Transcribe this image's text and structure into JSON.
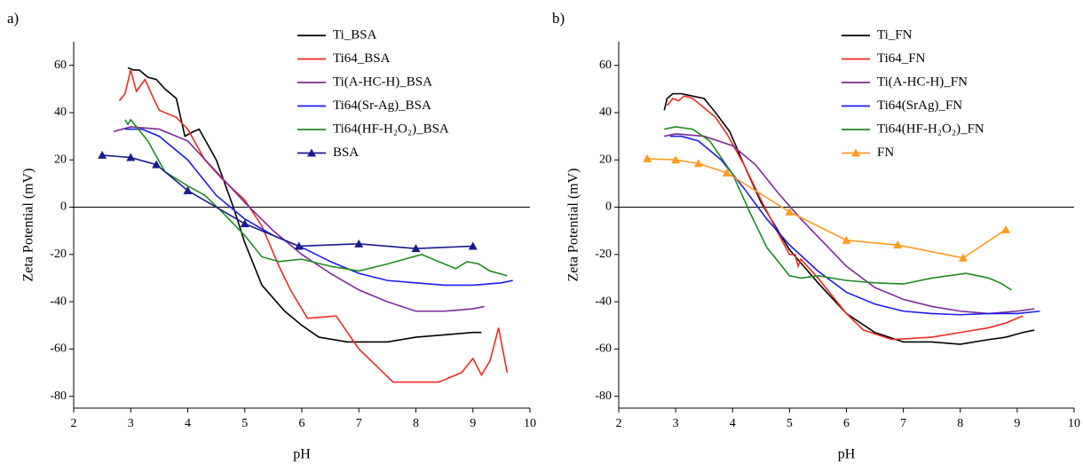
{
  "chart_data": [
    {
      "type": "line",
      "panel_label": "a)",
      "xlabel": "pH",
      "ylabel": "Zeta Potential (mV)",
      "xlim": [
        2,
        10
      ],
      "ylim": [
        -85,
        70
      ],
      "xticks": [
        2,
        3,
        4,
        5,
        6,
        7,
        8,
        9,
        10
      ],
      "yticks": [
        -80,
        -60,
        -40,
        -20,
        0,
        20,
        40,
        60
      ],
      "zero_line": true,
      "legend": "top-right",
      "series": [
        {
          "name": "Ti_BSA",
          "color": "#000000",
          "x": [
            2.95,
            3.05,
            3.15,
            3.3,
            3.45,
            3.6,
            3.8,
            3.95,
            4.1,
            4.2,
            4.5,
            4.8,
            5.0,
            5.3,
            5.7,
            6.0,
            6.3,
            6.8,
            7.5,
            8.0,
            8.5,
            9.0,
            9.15
          ],
          "values": [
            59,
            58,
            58,
            55,
            54,
            50,
            46,
            30,
            32,
            33,
            20,
            0,
            -15,
            -33,
            -44,
            -50,
            -55,
            -57,
            -57,
            -55,
            -54,
            -53,
            -53
          ]
        },
        {
          "name": "Ti64_BSA",
          "color": "#ee2a24",
          "x": [
            2.8,
            2.9,
            3.0,
            3.1,
            3.25,
            3.4,
            3.5,
            3.6,
            3.8,
            4.0,
            4.3,
            4.6,
            5.0,
            5.3,
            5.6,
            5.8,
            6.1,
            6.6,
            7.0,
            7.6,
            8.4,
            8.8,
            9.0,
            9.15,
            9.3,
            9.45,
            9.6
          ],
          "values": [
            45,
            48,
            58,
            49,
            54,
            46,
            41,
            40,
            38,
            33,
            20,
            12,
            3,
            -8,
            -25,
            -35,
            -47,
            -46,
            -60,
            -74,
            -74,
            -70,
            -64,
            -71,
            -65,
            -51,
            -70
          ]
        },
        {
          "name": "Ti(A-HC-H)_BSA",
          "color": "#7b2a96",
          "x": [
            2.7,
            3.0,
            3.5,
            4.0,
            4.5,
            5.0,
            5.5,
            6.0,
            6.5,
            7.0,
            7.5,
            8.0,
            8.5,
            9.0,
            9.2
          ],
          "values": [
            32,
            34,
            33,
            28,
            15,
            2,
            -10,
            -20,
            -28,
            -35,
            -40,
            -44,
            -44,
            -43,
            -42
          ]
        },
        {
          "name": "Ti64(Sr-Ag)_BSA",
          "color": "#1c1cf0",
          "x": [
            2.9,
            3.2,
            3.5,
            4.0,
            4.5,
            5.0,
            5.5,
            6.0,
            6.5,
            7.0,
            7.5,
            8.0,
            8.5,
            9.0,
            9.5,
            9.7
          ],
          "values": [
            33,
            33,
            30,
            20,
            5,
            -5,
            -12,
            -17,
            -23,
            -28,
            -31,
            -32,
            -33,
            -33,
            -32,
            -31
          ]
        },
        {
          "name": "Ti64(HF-H₂O₂)_BSA",
          "color": "#1f8a1f",
          "x": [
            2.9,
            2.95,
            3.0,
            3.1,
            3.3,
            3.6,
            4.0,
            4.3,
            4.6,
            5.0,
            5.3,
            5.6,
            6.0,
            6.5,
            7.0,
            7.5,
            8.1,
            8.5,
            8.7,
            8.9,
            9.1,
            9.3,
            9.6
          ],
          "values": [
            37,
            35,
            37,
            34,
            28,
            15,
            9,
            5,
            -2,
            -12,
            -21,
            -23,
            -22,
            -25,
            -27,
            -24,
            -20,
            -24,
            -26,
            -23,
            -24,
            -27,
            -29
          ]
        },
        {
          "name": "BSA",
          "color": "#1a1a8c",
          "marker": "triangle",
          "x": [
            2.5,
            3.0,
            3.45,
            4.0,
            5.0,
            5.95,
            7.0,
            8.0,
            9.0
          ],
          "values": [
            22,
            21,
            18,
            7,
            -7,
            -16.5,
            -15.5,
            -17.5,
            -16.5
          ]
        }
      ]
    },
    {
      "type": "line",
      "panel_label": "b)",
      "xlabel": "pH",
      "ylabel": "Zeta Potential (mV)",
      "xlim": [
        2,
        10
      ],
      "ylim": [
        -85,
        70
      ],
      "xticks": [
        2,
        3,
        4,
        5,
        6,
        7,
        8,
        9,
        10
      ],
      "yticks": [
        -80,
        -60,
        -40,
        -20,
        0,
        20,
        40,
        60
      ],
      "zero_line": true,
      "legend": "top-right",
      "series": [
        {
          "name": "Ti_FN",
          "color": "#000000",
          "x": [
            2.8,
            2.85,
            2.95,
            3.1,
            3.3,
            3.5,
            3.7,
            3.95,
            4.2,
            4.5,
            5.0,
            5.5,
            6.0,
            6.5,
            7.0,
            7.5,
            8.0,
            8.5,
            8.8,
            9.1,
            9.3
          ],
          "values": [
            41,
            46,
            48,
            48,
            47,
            46,
            40,
            32,
            18,
            2,
            -18,
            -32,
            -45,
            -53,
            -57,
            -57,
            -58,
            -56,
            -55,
            -53,
            -52
          ]
        },
        {
          "name": "Ti64_FN",
          "color": "#ee2a24",
          "x": [
            2.85,
            2.95,
            3.05,
            3.15,
            3.3,
            3.5,
            3.7,
            3.9,
            4.2,
            4.5,
            4.8,
            5.0,
            5.1,
            5.15,
            5.2,
            5.5,
            6.0,
            6.3,
            6.8,
            7.5,
            8.0,
            8.5,
            8.8,
            9.1
          ],
          "values": [
            43,
            46,
            45,
            47,
            46,
            42,
            38,
            31,
            18,
            3,
            -11,
            -20,
            -20,
            -25,
            -22,
            -30,
            -45,
            -52,
            -56,
            -55,
            -53,
            -51,
            -49,
            -46
          ]
        },
        {
          "name": "Ti(A-HC-H)_FN",
          "color": "#7b2a96",
          "x": [
            2.8,
            3.0,
            3.5,
            4.0,
            4.4,
            4.8,
            5.2,
            5.6,
            6.0,
            6.5,
            7.0,
            7.5,
            8.0,
            8.5,
            9.0,
            9.3
          ],
          "values": [
            30,
            31,
            30,
            26,
            18,
            6,
            -5,
            -15,
            -25,
            -34,
            -39,
            -42,
            -44,
            -45,
            -44,
            -43
          ]
        },
        {
          "name": "Ti64(SrAg)_FN",
          "color": "#1c1cf0",
          "x": [
            2.9,
            3.1,
            3.4,
            3.8,
            4.2,
            4.6,
            5.0,
            5.5,
            6.0,
            6.5,
            7.0,
            7.5,
            8.0,
            8.5,
            9.0,
            9.4
          ],
          "values": [
            30,
            30,
            28,
            20,
            8,
            -5,
            -16,
            -27,
            -36,
            -41,
            -44,
            -45,
            -45.5,
            -45,
            -45,
            -44
          ]
        },
        {
          "name": "Ti64(HF-H₂O₂)_FN",
          "color": "#1f8a1f",
          "x": [
            2.8,
            3.0,
            3.3,
            3.6,
            4.0,
            4.3,
            4.6,
            5.0,
            5.2,
            5.5,
            6.0,
            6.5,
            7.0,
            7.5,
            8.1,
            8.5,
            8.7,
            8.9
          ],
          "values": [
            33,
            34,
            33,
            28,
            14,
            -2,
            -17,
            -29,
            -30,
            -29,
            -31,
            -32,
            -32.5,
            -30,
            -28,
            -30,
            -32,
            -35
          ]
        },
        {
          "name": "FN",
          "color": "#ff9a1f",
          "marker": "triangle",
          "x": [
            2.5,
            3.0,
            3.4,
            3.9,
            5.0,
            6.0,
            6.9,
            8.05,
            8.8
          ],
          "values": [
            20.5,
            20,
            18.5,
            14.5,
            -2,
            -14,
            -16,
            -21.5,
            -9.5
          ]
        }
      ]
    }
  ]
}
